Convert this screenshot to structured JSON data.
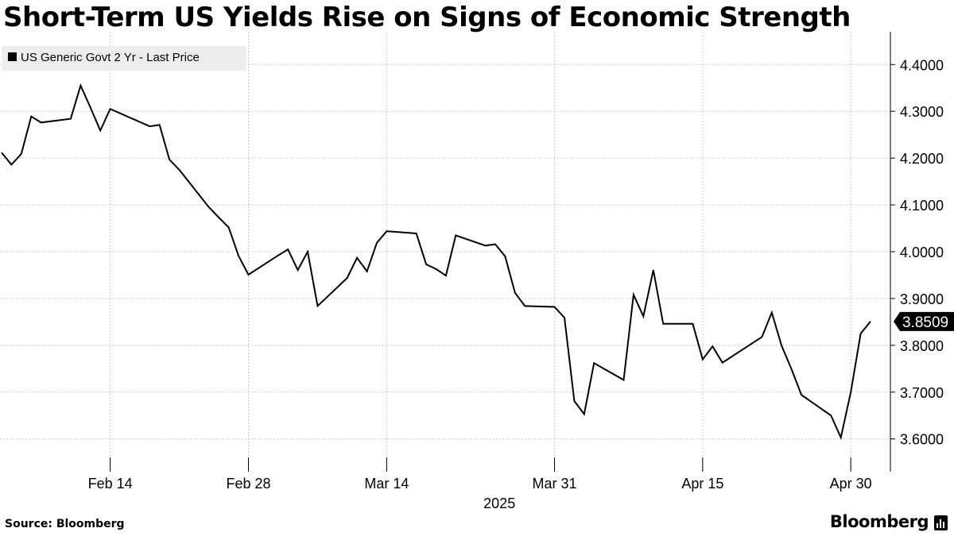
{
  "title": "Short-Term US Yields Rise on Signs of Economic Strength",
  "source": "Source: Bloomberg",
  "brand": "Bloomberg",
  "colors": {
    "line": "#000000",
    "grid": "#c8c8c8",
    "legend_bg": "#ededed",
    "last_value_bg": "#000000"
  },
  "chart_data": {
    "type": "line",
    "title": "Short-Term US Yields Rise on Signs of Economic Strength",
    "legend": "US Generic Govt 2 Yr - Last Price",
    "legend_placement": "top-left",
    "x_axis_label": "2025",
    "x_tick_labels": [
      "Feb 14",
      "Feb 28",
      "Mar 14",
      "Mar 31",
      "Apr 15",
      "Apr 30"
    ],
    "y_tick_labels": [
      "3.6000",
      "3.7000",
      "3.8000",
      "3.9000",
      "4.0000",
      "4.1000",
      "4.2000",
      "4.3000",
      "4.4000"
    ],
    "y_axis_position": "right",
    "ylim": [
      3.53,
      4.47
    ],
    "grid": true,
    "last_value_label": "3.8509",
    "series": [
      {
        "name": "US Generic Govt 2 Yr - Last Price",
        "points": [
          [
            "2025-02-03",
            4.212
          ],
          [
            "2025-02-04",
            4.186
          ],
          [
            "2025-02-05",
            4.209
          ],
          [
            "2025-02-06",
            4.289
          ],
          [
            "2025-02-07",
            4.276
          ],
          [
            "2025-02-10",
            4.284
          ],
          [
            "2025-02-11",
            4.355
          ],
          [
            "2025-02-12",
            4.308
          ],
          [
            "2025-02-13",
            4.259
          ],
          [
            "2025-02-14",
            4.305
          ],
          [
            "2025-02-18",
            4.268
          ],
          [
            "2025-02-19",
            4.271
          ],
          [
            "2025-02-20",
            4.197
          ],
          [
            "2025-02-21",
            4.175
          ],
          [
            "2025-02-24",
            4.095
          ],
          [
            "2025-02-25",
            4.073
          ],
          [
            "2025-02-26",
            4.052
          ],
          [
            "2025-02-27",
            3.991
          ],
          [
            "2025-02-28",
            3.951
          ],
          [
            "2025-03-03",
            3.992
          ],
          [
            "2025-03-04",
            4.005
          ],
          [
            "2025-03-05",
            3.961
          ],
          [
            "2025-03-06",
            4.0
          ],
          [
            "2025-03-07",
            3.884
          ],
          [
            "2025-03-10",
            3.944
          ],
          [
            "2025-03-11",
            3.987
          ],
          [
            "2025-03-12",
            3.958
          ],
          [
            "2025-03-13",
            4.019
          ],
          [
            "2025-03-14",
            4.044
          ],
          [
            "2025-03-17",
            4.039
          ],
          [
            "2025-03-18",
            3.973
          ],
          [
            "2025-03-19",
            3.963
          ],
          [
            "2025-03-20",
            3.949
          ],
          [
            "2025-03-21",
            4.035
          ],
          [
            "2025-03-24",
            4.013
          ],
          [
            "2025-03-25",
            4.016
          ],
          [
            "2025-03-26",
            3.99
          ],
          [
            "2025-03-27",
            3.912
          ],
          [
            "2025-03-28",
            3.884
          ],
          [
            "2025-03-31",
            3.882
          ],
          [
            "2025-04-01",
            3.859
          ],
          [
            "2025-04-02",
            3.681
          ],
          [
            "2025-04-03",
            3.653
          ],
          [
            "2025-04-04",
            3.762
          ],
          [
            "2025-04-07",
            3.726
          ],
          [
            "2025-04-08",
            3.908
          ],
          [
            "2025-04-09",
            3.862
          ],
          [
            "2025-04-10",
            3.961
          ],
          [
            "2025-04-11",
            3.846
          ],
          [
            "2025-04-14",
            3.846
          ],
          [
            "2025-04-15",
            3.77
          ],
          [
            "2025-04-16",
            3.798
          ],
          [
            "2025-04-17",
            3.763
          ],
          [
            "2025-04-21",
            3.818
          ],
          [
            "2025-04-22",
            3.87
          ],
          [
            "2025-04-23",
            3.799
          ],
          [
            "2025-04-24",
            3.749
          ],
          [
            "2025-04-25",
            3.694
          ],
          [
            "2025-04-28",
            3.65
          ],
          [
            "2025-04-29",
            3.603
          ],
          [
            "2025-04-30",
            3.7
          ],
          [
            "2025-05-01",
            3.825
          ],
          [
            "2025-05-02",
            3.851
          ]
        ]
      }
    ]
  }
}
